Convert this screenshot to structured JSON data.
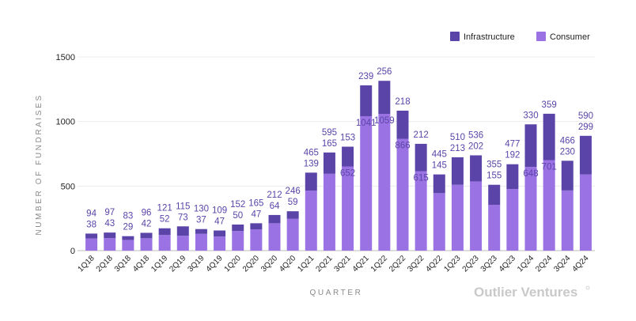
{
  "chart_data": {
    "type": "bar",
    "stacked": true,
    "xlabel": "QUARTER",
    "ylabel": "NUMBER OF FUNDRAISES",
    "ylim": [
      0,
      1500
    ],
    "yticks": [
      0,
      500,
      1000,
      1500
    ],
    "grid": true,
    "legend_position": "top-right",
    "categories": [
      "1Q18",
      "2Q18",
      "3Q18",
      "4Q18",
      "1Q19",
      "2Q19",
      "3Q19",
      "4Q19",
      "1Q20",
      "2Q20",
      "3Q20",
      "4Q20",
      "1Q21",
      "2Q21",
      "3Q21",
      "4Q21",
      "1Q22",
      "2Q22",
      "3Q22",
      "4Q22",
      "1Q23",
      "2Q23",
      "3Q23",
      "4Q23",
      "1Q24",
      "2Q24",
      "3Q24",
      "4Q24"
    ],
    "series": [
      {
        "name": "Consumer",
        "color": "#9b72e3",
        "values": [
          94,
          97,
          83,
          96,
          121,
          115,
          130,
          109,
          152,
          165,
          212,
          246,
          465,
          595,
          652,
          1041,
          1059,
          866,
          615,
          445,
          510,
          536,
          355,
          477,
          648,
          701,
          466,
          590
        ]
      },
      {
        "name": "Infrastructure",
        "color": "#5a44a8",
        "values": [
          38,
          43,
          29,
          42,
          52,
          73,
          37,
          47,
          50,
          47,
          64,
          59,
          139,
          165,
          153,
          239,
          256,
          218,
          212,
          145,
          213,
          202,
          155,
          192,
          330,
          359,
          230,
          299
        ]
      }
    ]
  },
  "legend": {
    "items": [
      {
        "label": "Infrastructure",
        "color": "#5a44a8"
      },
      {
        "label": "Consumer",
        "color": "#9b72e3"
      }
    ]
  },
  "branding": {
    "logo_text": "Outlier Ventures"
  }
}
